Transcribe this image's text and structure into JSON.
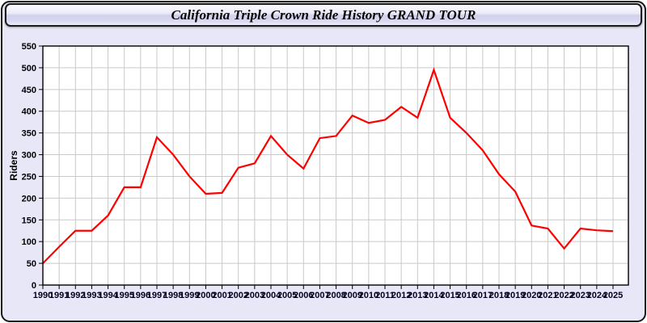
{
  "header": {
    "title": "California Triple Crown Ride History GRAND TOUR"
  },
  "chart_data": {
    "type": "line",
    "title": "California Triple Crown Ride History GRAND TOUR",
    "xlabel": "",
    "ylabel": "Riders",
    "x": [
      1990,
      1991,
      1992,
      1993,
      1994,
      1995,
      1996,
      1997,
      1998,
      1999,
      2000,
      2001,
      2002,
      2003,
      2004,
      2005,
      2006,
      2007,
      2008,
      2009,
      2010,
      2011,
      2012,
      2013,
      2014,
      2015,
      2016,
      2017,
      2018,
      2019,
      2020,
      2021,
      2022,
      2023,
      2024,
      2025
    ],
    "series": [
      {
        "name": "Riders",
        "color": "#ff0000",
        "values": [
          50,
          88,
          125,
          125,
          160,
          225,
          225,
          340,
          300,
          250,
          210,
          212,
          270,
          280,
          343,
          300,
          268,
          338,
          343,
          390,
          373,
          380,
          410,
          385,
          495,
          385,
          350,
          310,
          255,
          215,
          137,
          130,
          84,
          130,
          126,
          124
        ]
      }
    ],
    "ylim": [
      0,
      550
    ],
    "ytick_step": 50,
    "grid": true,
    "legend": "none"
  },
  "colors": {
    "line": "#ff0000",
    "page_background": "#e7e7f7",
    "plot_background": "#ffffff",
    "gridline": "#c9c9c9",
    "frame": "#000000",
    "y_label_color": "#000000",
    "x_label_color": "#00001e"
  }
}
